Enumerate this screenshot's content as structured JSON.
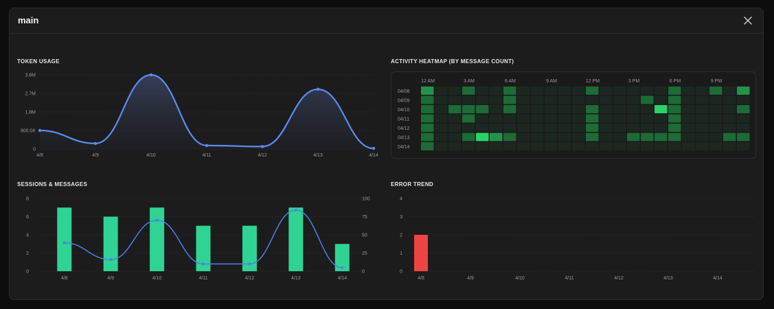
{
  "window": {
    "title": "main",
    "close_icon": "close-icon"
  },
  "colors": {
    "line": "#5b8def",
    "bar": "#2fd393",
    "error": "#ef4444",
    "heat_empty": "#1f3324",
    "heat_low": "#1d6b35",
    "heat_high": "#2ad16a"
  },
  "token_usage": {
    "title": "TOKEN USAGE",
    "y_ticks": [
      "3.6M",
      "2.7M",
      "1.8M",
      "900.0K",
      "0"
    ]
  },
  "heatmap": {
    "title": "ACTIVITY HEATMAP (BY MESSAGE COUNT)",
    "hour_labels": [
      {
        "hour": 0,
        "label": "12 AM"
      },
      {
        "hour": 3,
        "label": "3 AM"
      },
      {
        "hour": 6,
        "label": "6 AM"
      },
      {
        "hour": 9,
        "label": "9 AM"
      },
      {
        "hour": 12,
        "label": "12 PM"
      },
      {
        "hour": 15,
        "label": "3 PM"
      },
      {
        "hour": 18,
        "label": "6 PM"
      },
      {
        "hour": 21,
        "label": "9 PM"
      }
    ]
  },
  "sessions": {
    "title": "SESSIONS & MESSAGES",
    "left_ticks": [
      "8",
      "6",
      "4",
      "2",
      "0"
    ],
    "right_ticks": [
      "100",
      "75",
      "50",
      "25",
      "0"
    ]
  },
  "errors": {
    "title": "ERROR TREND",
    "y_ticks": [
      "4",
      "3",
      "2",
      "1",
      "0"
    ]
  },
  "chart_data": [
    {
      "type": "area",
      "title": "TOKEN USAGE",
      "categories": [
        "4/8",
        "4/9",
        "4/10",
        "4/11",
        "4/12",
        "4/13",
        "4/14"
      ],
      "values": [
        900000,
        270000,
        3600000,
        170000,
        120000,
        2900000,
        30000
      ],
      "ylim": [
        0,
        3600000
      ]
    },
    {
      "type": "heatmap",
      "title": "ACTIVITY HEATMAP (BY MESSAGE COUNT)",
      "rows": [
        "04/08",
        "04/09",
        "04/10",
        "04/11",
        "04/12",
        "04/13",
        "04/14"
      ],
      "columns": 24,
      "values": [
        [
          2,
          0,
          0,
          1,
          0,
          0,
          1,
          0,
          0,
          0,
          0,
          0,
          1,
          0,
          0,
          0,
          0,
          0,
          1,
          0,
          0,
          1,
          0,
          2
        ],
        [
          1,
          0,
          0,
          0,
          0,
          0,
          1,
          0,
          0,
          0,
          0,
          0,
          0,
          0,
          0,
          0,
          1,
          0,
          1,
          0,
          0,
          0,
          0,
          0
        ],
        [
          1,
          0,
          1,
          1,
          1,
          0,
          1,
          0,
          0,
          0,
          0,
          0,
          1,
          0,
          0,
          0,
          0,
          3,
          1,
          0,
          0,
          0,
          0,
          1
        ],
        [
          1,
          0,
          0,
          1,
          0,
          0,
          0,
          0,
          0,
          0,
          0,
          0,
          1,
          0,
          0,
          0,
          0,
          0,
          1,
          0,
          0,
          0,
          0,
          0
        ],
        [
          1,
          0,
          0,
          0,
          0,
          0,
          0,
          0,
          0,
          0,
          0,
          0,
          1,
          0,
          0,
          0,
          0,
          0,
          1,
          0,
          0,
          0,
          0,
          0
        ],
        [
          1,
          0,
          0,
          1,
          3,
          2,
          1,
          0,
          0,
          0,
          0,
          0,
          1,
          0,
          0,
          1,
          1,
          1,
          1,
          0,
          0,
          0,
          1,
          1
        ],
        [
          1,
          0,
          0,
          0,
          0,
          0,
          0,
          0,
          0,
          0,
          0,
          0,
          0,
          0,
          0,
          0,
          0,
          0,
          0,
          0,
          0,
          0,
          0,
          0
        ]
      ]
    },
    {
      "type": "bar",
      "title": "SESSIONS & MESSAGES",
      "categories": [
        "4/8",
        "4/9",
        "4/10",
        "4/11",
        "4/12",
        "4/13",
        "4/14"
      ],
      "series": [
        {
          "values": [
            7,
            6,
            7,
            5,
            5,
            7,
            3
          ]
        },
        {
          "type": "line",
          "values": [
            39,
            16,
            70,
            10,
            10,
            84,
            5
          ]
        }
      ],
      "ylim": [
        0,
        8
      ],
      "y2lim": [
        0,
        100
      ]
    },
    {
      "type": "bar",
      "title": "ERROR TREND",
      "categories": [
        "4/8",
        "4/9",
        "4/10",
        "4/11",
        "4/12",
        "4/13",
        "4/14"
      ],
      "values": [
        2,
        0,
        0,
        0,
        0,
        0,
        0
      ],
      "ylim": [
        0,
        4
      ]
    }
  ]
}
